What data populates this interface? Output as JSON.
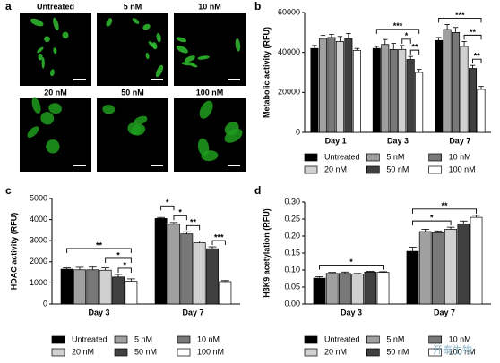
{
  "panel_labels": [
    "a",
    "b",
    "c",
    "d"
  ],
  "images": {
    "labels": [
      "Untreated",
      "5 nM",
      "10 nM",
      "20 nM",
      "50 nM",
      "100 nM"
    ]
  },
  "watermark": "开泰生物",
  "chart_data": [
    {
      "type": "bar",
      "y_label": "Metabolic activity (RFU)",
      "categories": [
        "Day 1",
        "Day 3",
        "Day 7"
      ],
      "series": [
        {
          "name": "Untreated",
          "color": "#000000",
          "values": [
            42000,
            42000,
            46000
          ],
          "errors": [
            1500,
            1000,
            1500
          ]
        },
        {
          "name": "5 nM",
          "color": "#a0a0a0",
          "values": [
            47000,
            44000,
            51500
          ],
          "errors": [
            1500,
            2500,
            2500
          ]
        },
        {
          "name": "10 nM",
          "color": "#787878",
          "values": [
            47500,
            41500,
            50000
          ],
          "errors": [
            1500,
            3000,
            2500
          ]
        },
        {
          "name": "20 nM",
          "color": "#d0d0d0",
          "values": [
            45500,
            41500,
            43000
          ],
          "errors": [
            2500,
            2000,
            2500
          ]
        },
        {
          "name": "50 nM",
          "color": "#404040",
          "values": [
            47000,
            36500,
            32000
          ],
          "errors": [
            2500,
            1500,
            1500
          ]
        },
        {
          "name": "100 nM",
          "color": "#ffffff",
          "values": [
            41000,
            30000,
            21500
          ],
          "errors": [
            1000,
            1500,
            1500
          ]
        }
      ],
      "ylim": [
        0,
        60000
      ],
      "yticks": [
        0,
        20000,
        40000,
        60000
      ],
      "significance": [
        {
          "label": "**",
          "category": 1,
          "pair": [
            4,
            5
          ]
        },
        {
          "label": "*",
          "category": 1,
          "pair": [
            3,
            4
          ]
        },
        {
          "label": "***",
          "category": 1,
          "pair": [
            0,
            5
          ]
        },
        {
          "label": "**",
          "category": 2,
          "pair": [
            4,
            5
          ]
        },
        {
          "label": "**",
          "category": 2,
          "pair": [
            3,
            5
          ]
        },
        {
          "label": "***",
          "category": 2,
          "pair": [
            0,
            5
          ]
        }
      ]
    },
    {
      "type": "bar",
      "y_label": "HDAC activity (RFU)",
      "categories": [
        "Day 3",
        "Day 7"
      ],
      "series": [
        {
          "name": "Untreated",
          "color": "#000000",
          "values": [
            1650,
            4050
          ],
          "errors": [
            60,
            50
          ]
        },
        {
          "name": "5 nM",
          "color": "#a0a0a0",
          "values": [
            1620,
            3780
          ],
          "errors": [
            120,
            80
          ]
        },
        {
          "name": "10 nM",
          "color": "#787878",
          "values": [
            1620,
            3320
          ],
          "errors": [
            130,
            100
          ]
        },
        {
          "name": "20 nM",
          "color": "#d0d0d0",
          "values": [
            1600,
            2900
          ],
          "errors": [
            110,
            90
          ]
        },
        {
          "name": "50 nM",
          "color": "#404040",
          "values": [
            1280,
            2620
          ],
          "errors": [
            120,
            90
          ]
        },
        {
          "name": "100 nM",
          "color": "#ffffff",
          "values": [
            1080,
            1060
          ],
          "errors": [
            110,
            50
          ]
        }
      ],
      "ylim": [
        0,
        5000
      ],
      "yticks": [
        0,
        1000,
        2000,
        3000,
        4000,
        5000
      ],
      "significance": [
        {
          "label": "*",
          "category": 0,
          "pair": [
            4,
            5
          ]
        },
        {
          "label": "*",
          "category": 0,
          "pair": [
            3,
            5
          ]
        },
        {
          "label": "**",
          "category": 0,
          "pair": [
            0,
            5
          ]
        },
        {
          "label": "***",
          "category": 1,
          "pair": [
            4,
            5
          ]
        },
        {
          "label": "**",
          "category": 1,
          "pair": [
            2,
            3
          ]
        },
        {
          "label": "*",
          "category": 1,
          "pair": [
            1,
            2
          ]
        },
        {
          "label": "*",
          "category": 1,
          "pair": [
            0,
            1
          ]
        }
      ]
    },
    {
      "type": "bar",
      "y_label": "H3K9 acetylation (RFU)",
      "categories": [
        "Day 3",
        "Day 7"
      ],
      "series": [
        {
          "name": "Untreated",
          "color": "#000000",
          "values": [
            0.076,
            0.155
          ],
          "errors": [
            0.004,
            0.012
          ]
        },
        {
          "name": "5 nM",
          "color": "#a0a0a0",
          "values": [
            0.09,
            0.213
          ],
          "errors": [
            0.003,
            0.007
          ]
        },
        {
          "name": "10 nM",
          "color": "#787878",
          "values": [
            0.09,
            0.21
          ],
          "errors": [
            0.004,
            0.005
          ]
        },
        {
          "name": "20 nM",
          "color": "#d0d0d0",
          "values": [
            0.088,
            0.22
          ],
          "errors": [
            0.002,
            0.006
          ]
        },
        {
          "name": "50 nM",
          "color": "#404040",
          "values": [
            0.094,
            0.236
          ],
          "errors": [
            0.002,
            0.008
          ]
        },
        {
          "name": "100 nM",
          "color": "#ffffff",
          "values": [
            0.093,
            0.255
          ],
          "errors": [
            0.002,
            0.006
          ]
        }
      ],
      "ylim": [
        0,
        0.3
      ],
      "yticks": [
        {
          "value": 0,
          "label": "0.00"
        },
        {
          "value": 0.05,
          "label": "0.05"
        },
        {
          "value": 0.1,
          "label": "0.10"
        },
        {
          "value": 0.15,
          "label": "0.15"
        },
        {
          "value": 0.2,
          "label": "0.20"
        },
        {
          "value": 0.25,
          "label": "0.25"
        },
        {
          "value": 0.3,
          "label": "0.30"
        }
      ],
      "significance": [
        {
          "label": "*",
          "category": 0,
          "pair": [
            0,
            5
          ]
        },
        {
          "label": "*",
          "category": 1,
          "pair": [
            0,
            3
          ]
        },
        {
          "label": "**",
          "category": 1,
          "pair": [
            0,
            5
          ]
        }
      ]
    }
  ]
}
